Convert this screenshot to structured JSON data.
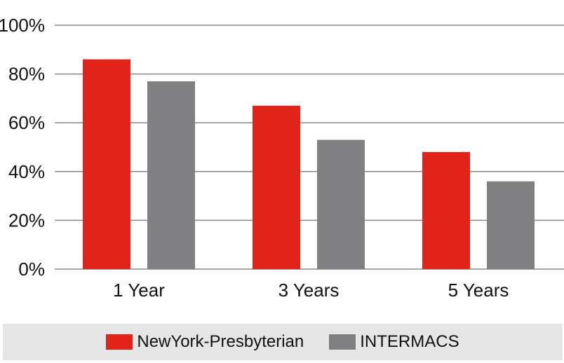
{
  "chart_data": {
    "type": "bar",
    "categories": [
      "1 Year",
      "3 Years",
      "5 Years"
    ],
    "series": [
      {
        "name": "NewYork-Presbyterian",
        "values": [
          86,
          67,
          48
        ],
        "color": "#e2231a"
      },
      {
        "name": "INTERMACS",
        "values": [
          77,
          53,
          36
        ],
        "color": "#808083"
      }
    ],
    "ylim": [
      0,
      100
    ],
    "yticks": [
      0,
      20,
      40,
      60,
      80,
      100
    ],
    "ytick_labels": [
      "0%",
      "20%",
      "40%",
      "60%",
      "80%",
      "100%"
    ],
    "grid": true,
    "grid_color": "#888888",
    "legend_position": "bottom",
    "legend_background": "#e6e6e6"
  }
}
